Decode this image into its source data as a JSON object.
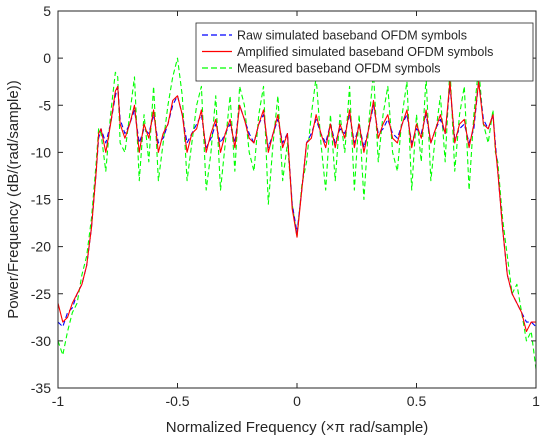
{
  "chart_data": {
    "type": "line",
    "title": "",
    "xlabel": "Normalized Frequency (×π rad/sample)",
    "ylabel": "Power/Frequency (dB/(rad/sample))",
    "xlim": [
      -1,
      1
    ],
    "ylim": [
      -35,
      5
    ],
    "x_ticks": [
      -1,
      -0.5,
      0,
      0.5,
      1
    ],
    "y_ticks": [
      -35,
      -30,
      -25,
      -20,
      -15,
      -10,
      -5,
      0,
      5
    ],
    "x_tick_labels": [
      "-1",
      "-0.5",
      "0",
      "0.5",
      "1"
    ],
    "y_tick_labels": [
      "-35",
      "-30",
      "-25",
      "-20",
      "-15",
      "-10",
      "-5",
      "0",
      "5"
    ],
    "grid": false,
    "legend_position": "top-right",
    "series": [
      {
        "name": "Raw simulated baseband OFDM symbols",
        "color": "#0000ff",
        "style": "dashed",
        "x": [
          -1.0,
          -0.98,
          -0.96,
          -0.94,
          -0.92,
          -0.9,
          -0.88,
          -0.86,
          -0.84,
          -0.83,
          -0.82,
          -0.8,
          -0.78,
          -0.76,
          -0.75,
          -0.74,
          -0.72,
          -0.7,
          -0.68,
          -0.66,
          -0.64,
          -0.62,
          -0.6,
          -0.58,
          -0.56,
          -0.54,
          -0.52,
          -0.5,
          -0.48,
          -0.46,
          -0.44,
          -0.42,
          -0.4,
          -0.38,
          -0.36,
          -0.34,
          -0.32,
          -0.3,
          -0.28,
          -0.26,
          -0.24,
          -0.22,
          -0.2,
          -0.18,
          -0.16,
          -0.14,
          -0.12,
          -0.1,
          -0.08,
          -0.06,
          -0.04,
          -0.02,
          0.0,
          0.02,
          0.04,
          0.06,
          0.08,
          0.1,
          0.12,
          0.14,
          0.16,
          0.18,
          0.2,
          0.22,
          0.24,
          0.26,
          0.28,
          0.3,
          0.32,
          0.34,
          0.36,
          0.38,
          0.4,
          0.42,
          0.44,
          0.46,
          0.48,
          0.5,
          0.52,
          0.54,
          0.56,
          0.58,
          0.6,
          0.62,
          0.64,
          0.66,
          0.68,
          0.7,
          0.72,
          0.74,
          0.76,
          0.78,
          0.8,
          0.82,
          0.83,
          0.84,
          0.86,
          0.88,
          0.9,
          0.92,
          0.94,
          0.96,
          0.98,
          1.0
        ],
        "y": [
          -28,
          -28.5,
          -27,
          -26.5,
          -25,
          -24,
          -22,
          -18,
          -12,
          -8.5,
          -7.5,
          -9,
          -7,
          -4,
          -3,
          -6.5,
          -8,
          -7,
          -5.5,
          -9,
          -7.5,
          -8,
          -6,
          -9,
          -8.5,
          -7,
          -5,
          -4,
          -6,
          -9,
          -8,
          -7,
          -6,
          -9.5,
          -8.5,
          -7,
          -9,
          -8,
          -7,
          -9,
          -5,
          -6.5,
          -8,
          -9,
          -7,
          -6,
          -9.5,
          -8,
          -6.5,
          -9,
          -8,
          -15.5,
          -18.5,
          -14,
          -9,
          -8,
          -6.5,
          -8,
          -9,
          -7,
          -9,
          -7.5,
          -8,
          -6,
          -9,
          -7,
          -9.5,
          -7.5,
          -5,
          -8,
          -7.5,
          -6.5,
          -8,
          -8.5,
          -7,
          -6,
          -9,
          -7.5,
          -8,
          -6,
          -9,
          -7.5,
          -6.5,
          -8,
          -3,
          -8.5,
          -7.5,
          -7,
          -9,
          -7.5,
          -2.5,
          -6.5,
          -7.5,
          -6,
          -9,
          -12,
          -18,
          -23,
          -25,
          -26,
          -27,
          -28,
          -28,
          -28.5
        ]
      },
      {
        "name": "Amplified simulated baseband OFDM symbols",
        "color": "#ff0000",
        "style": "solid",
        "x": [
          -1.0,
          -0.98,
          -0.96,
          -0.94,
          -0.92,
          -0.9,
          -0.88,
          -0.86,
          -0.84,
          -0.83,
          -0.82,
          -0.8,
          -0.78,
          -0.76,
          -0.75,
          -0.74,
          -0.72,
          -0.7,
          -0.68,
          -0.66,
          -0.64,
          -0.62,
          -0.6,
          -0.58,
          -0.56,
          -0.54,
          -0.52,
          -0.5,
          -0.48,
          -0.46,
          -0.44,
          -0.42,
          -0.4,
          -0.38,
          -0.36,
          -0.34,
          -0.32,
          -0.3,
          -0.28,
          -0.26,
          -0.24,
          -0.22,
          -0.2,
          -0.18,
          -0.16,
          -0.14,
          -0.12,
          -0.1,
          -0.08,
          -0.06,
          -0.04,
          -0.02,
          0.0,
          0.02,
          0.04,
          0.06,
          0.08,
          0.1,
          0.12,
          0.14,
          0.16,
          0.18,
          0.2,
          0.22,
          0.24,
          0.26,
          0.28,
          0.3,
          0.32,
          0.34,
          0.36,
          0.38,
          0.4,
          0.42,
          0.44,
          0.46,
          0.48,
          0.5,
          0.52,
          0.54,
          0.56,
          0.58,
          0.6,
          0.62,
          0.64,
          0.66,
          0.68,
          0.7,
          0.72,
          0.74,
          0.76,
          0.78,
          0.8,
          0.82,
          0.83,
          0.84,
          0.86,
          0.88,
          0.9,
          0.92,
          0.94,
          0.96,
          0.98,
          1.0
        ],
        "y": [
          -26,
          -28,
          -27.5,
          -26,
          -25,
          -24,
          -22,
          -18,
          -12,
          -8,
          -7.5,
          -10,
          -7,
          -3.5,
          -3,
          -7,
          -8.5,
          -7,
          -5,
          -10,
          -7,
          -8.5,
          -5.5,
          -10,
          -8,
          -7,
          -4.5,
          -4,
          -6,
          -10,
          -8,
          -7.5,
          -5.5,
          -10,
          -8,
          -6.5,
          -10,
          -8,
          -6.5,
          -9.5,
          -5,
          -6.5,
          -8.5,
          -9,
          -7,
          -5.5,
          -10,
          -8,
          -6,
          -9.5,
          -8,
          -16,
          -19,
          -14,
          -9,
          -8.5,
          -6,
          -8,
          -9.5,
          -7,
          -9.5,
          -7,
          -8.5,
          -5.5,
          -9.5,
          -7,
          -10,
          -7.5,
          -4.5,
          -8.5,
          -7,
          -6,
          -8.5,
          -9,
          -7,
          -5.5,
          -9.5,
          -7,
          -8.5,
          -5.5,
          -9,
          -7.5,
          -6,
          -8,
          -2.5,
          -9,
          -7,
          -6.5,
          -9.5,
          -7,
          -2.5,
          -7,
          -7.5,
          -6,
          -9.5,
          -12,
          -18,
          -23,
          -25,
          -26,
          -27,
          -29,
          -28,
          -28
        ]
      },
      {
        "name": "Measured baseband OFDM symbols",
        "color": "#00ff00",
        "style": "dashed",
        "x": [
          -1.0,
          -0.98,
          -0.96,
          -0.94,
          -0.92,
          -0.9,
          -0.88,
          -0.86,
          -0.84,
          -0.83,
          -0.82,
          -0.8,
          -0.78,
          -0.76,
          -0.75,
          -0.74,
          -0.72,
          -0.7,
          -0.68,
          -0.66,
          -0.64,
          -0.62,
          -0.6,
          -0.58,
          -0.56,
          -0.54,
          -0.52,
          -0.5,
          -0.48,
          -0.46,
          -0.44,
          -0.42,
          -0.4,
          -0.38,
          -0.36,
          -0.34,
          -0.32,
          -0.3,
          -0.28,
          -0.26,
          -0.24,
          -0.22,
          -0.2,
          -0.18,
          -0.16,
          -0.14,
          -0.12,
          -0.1,
          -0.08,
          -0.06,
          -0.04,
          -0.02,
          0.0,
          0.02,
          0.04,
          0.06,
          0.08,
          0.1,
          0.12,
          0.14,
          0.16,
          0.18,
          0.2,
          0.22,
          0.24,
          0.26,
          0.28,
          0.3,
          0.32,
          0.34,
          0.36,
          0.38,
          0.4,
          0.42,
          0.44,
          0.46,
          0.48,
          0.5,
          0.52,
          0.54,
          0.56,
          0.58,
          0.6,
          0.62,
          0.64,
          0.66,
          0.68,
          0.7,
          0.72,
          0.74,
          0.76,
          0.78,
          0.8,
          0.82,
          0.83,
          0.84,
          0.86,
          0.88,
          0.9,
          0.92,
          0.94,
          0.96,
          0.98,
          1.0
        ],
        "y": [
          -30,
          -31.5,
          -29,
          -27,
          -26,
          -23,
          -21,
          -17,
          -11,
          -7.5,
          -8,
          -12,
          -6,
          -1.5,
          -2,
          -9,
          -10,
          -6,
          -2,
          -13,
          -6,
          -11,
          -3,
          -13,
          -9,
          -5,
          -2,
          0,
          -4,
          -13,
          -9,
          -5,
          -3,
          -14,
          -10,
          -4,
          -14,
          -9,
          -4,
          -12,
          -3,
          -5,
          -10,
          -12,
          -6,
          -3,
          -15.5,
          -9,
          -4,
          -13,
          -9,
          -15.5,
          -19,
          -13.5,
          -11,
          -6,
          -2,
          -9,
          -14,
          -6,
          -13,
          -6,
          -10,
          -3,
          -14,
          -6,
          -15,
          -7,
          -1.5,
          -11,
          -6,
          -3,
          -10,
          -12,
          -6,
          -2.5,
          -14,
          -6,
          -11,
          -2,
          -13,
          -8,
          -4,
          -11,
          -1,
          -12,
          -6,
          -3,
          -14,
          -6,
          -1,
          -7,
          -9,
          -5.5,
          -10,
          -11,
          -17,
          -21,
          -25,
          -24,
          -27,
          -30,
          -29,
          -33
        ]
      }
    ]
  }
}
